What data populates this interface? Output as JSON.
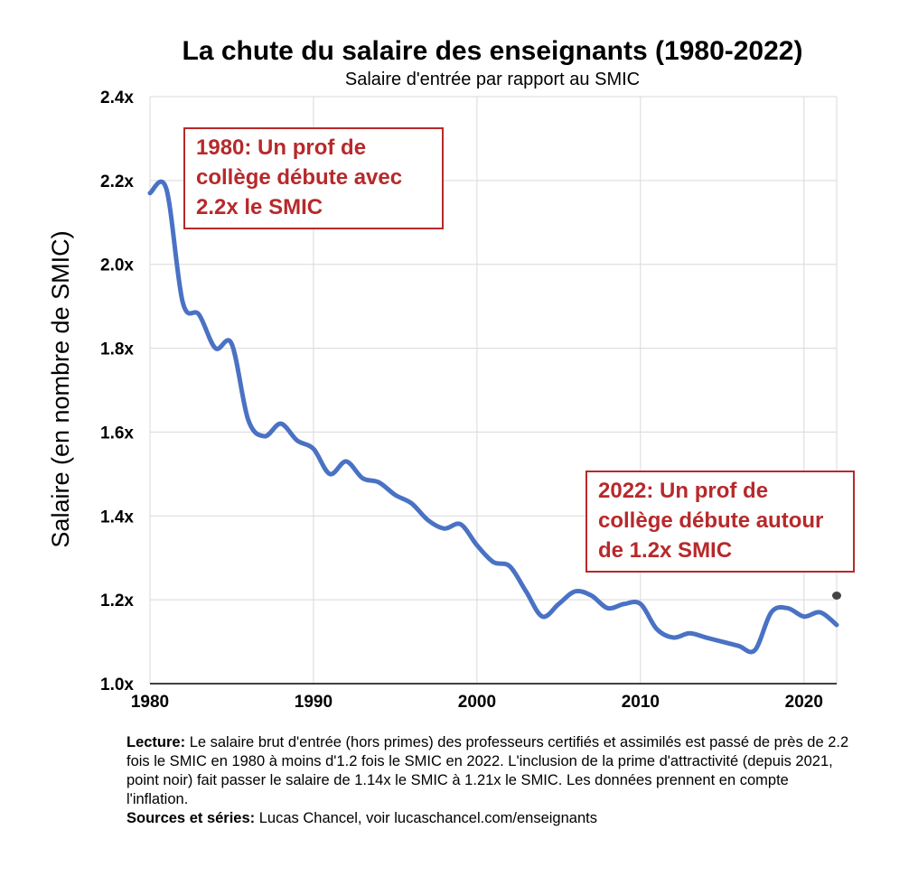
{
  "colors": {
    "line": "#4a72c4",
    "grid": "#d9d9d9",
    "annotation": "#b7292b",
    "dot": "#444444"
  },
  "caption": {
    "lecture_label": "Lecture:",
    "lecture_text": " Le salaire brut d'entrée (hors primes) des professeurs certifiés et assimilés est passé de près de 2.2 fois le SMIC en 1980 à moins d'1.2 fois le SMIC en 2022. L'inclusion de la prime d'attractivité (depuis 2021, point noir) fait passer le salaire de 1.14x le SMIC à 1.21x le SMIC. Les données prennent en compte l'inflation.",
    "sources_label": "Sources et séries:",
    "sources_text": " Lucas Chancel, voir lucaschancel.com/enseignants"
  },
  "chart_data": {
    "type": "line",
    "title": "La chute du salaire des enseignants (1980-2022)",
    "subtitle": "Salaire d'entrée par rapport au SMIC",
    "xlabel": "",
    "ylabel": "Salaire (en nombre de SMIC)",
    "xlim": [
      1980,
      2022
    ],
    "ylim": [
      1.0,
      2.4
    ],
    "x_ticks": [
      1980,
      1990,
      2000,
      2010,
      2020
    ],
    "y_ticks": [
      1.0,
      1.2,
      1.4,
      1.6,
      1.8,
      2.0,
      2.2,
      2.4
    ],
    "y_tick_labels": [
      "1.0x",
      "1.2x",
      "1.4x",
      "1.6x",
      "1.8x",
      "2.0x",
      "2.2x",
      "2.4x"
    ],
    "grid": true,
    "series": [
      {
        "name": "Salaire d'entrée / SMIC",
        "x": [
          1980,
          1981,
          1982,
          1983,
          1984,
          1985,
          1986,
          1987,
          1988,
          1989,
          1990,
          1991,
          1992,
          1993,
          1994,
          1995,
          1996,
          1997,
          1998,
          1999,
          2000,
          2001,
          2002,
          2003,
          2004,
          2005,
          2006,
          2007,
          2008,
          2009,
          2010,
          2011,
          2012,
          2013,
          2014,
          2015,
          2016,
          2017,
          2018,
          2019,
          2020,
          2021,
          2022
        ],
        "values": [
          2.17,
          2.18,
          1.91,
          1.88,
          1.8,
          1.81,
          1.63,
          1.59,
          1.62,
          1.58,
          1.56,
          1.5,
          1.53,
          1.49,
          1.48,
          1.45,
          1.43,
          1.39,
          1.37,
          1.38,
          1.33,
          1.29,
          1.28,
          1.22,
          1.16,
          1.19,
          1.22,
          1.21,
          1.18,
          1.19,
          1.19,
          1.13,
          1.11,
          1.12,
          1.11,
          1.1,
          1.09,
          1.08,
          1.17,
          1.18,
          1.16,
          1.17,
          1.14
        ]
      }
    ],
    "points": [
      {
        "name": "Avec prime d'attractivité",
        "x": 2022,
        "y": 1.21
      }
    ],
    "annotations": [
      {
        "text": "1980: Un prof de collège débute avec 2.2x le SMIC"
      },
      {
        "text": "2022: Un prof de collège débute autour de 1.2x SMIC"
      }
    ]
  }
}
